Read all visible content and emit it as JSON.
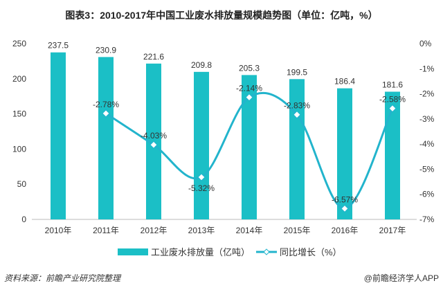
{
  "chart_data": {
    "type": "bar+line",
    "title": "图表3：2010-2017年中国工业废水排放量规模趋势图（单位：亿吨，%）",
    "categories": [
      "2010年",
      "2011年",
      "2012年",
      "2013年",
      "2014年",
      "2015年",
      "2016年",
      "2017年"
    ],
    "series": [
      {
        "name": "工业废水排放量（亿吨）",
        "type": "bar",
        "axis": "left",
        "values": [
          237.5,
          230.9,
          221.6,
          209.8,
          205.3,
          199.5,
          186.4,
          181.6
        ],
        "labels": [
          "237.5",
          "230.9",
          "221.6",
          "209.8",
          "205.3",
          "199.5",
          "186.4",
          "181.6"
        ],
        "color": "#1bbfc6"
      },
      {
        "name": "同比增长（%）",
        "type": "line",
        "axis": "right",
        "values": [
          null,
          -2.78,
          -4.03,
          -5.32,
          -2.14,
          -2.83,
          -6.57,
          -2.58
        ],
        "labels": [
          "",
          "-2.78%",
          "-4.03%",
          "-5.32%",
          "-2.14%",
          "-2.83%",
          "-6.57%",
          "-2.58%"
        ],
        "color": "#22b4cc",
        "smooth": true
      }
    ],
    "left_axis": {
      "range": [
        0,
        250
      ],
      "ticks": [
        "0",
        "50",
        "100",
        "150",
        "200",
        "250"
      ]
    },
    "right_axis": {
      "range": [
        -7,
        0
      ],
      "ticks": [
        "0%",
        "-1%",
        "-2%",
        "-3%",
        "-4%",
        "-5%",
        "-6%",
        "-7%"
      ]
    },
    "grid": false,
    "legend": "bottom"
  },
  "footer": {
    "source": "资料来源：前瞻产业研究院整理",
    "brand": "@前瞻经济学人APP"
  }
}
